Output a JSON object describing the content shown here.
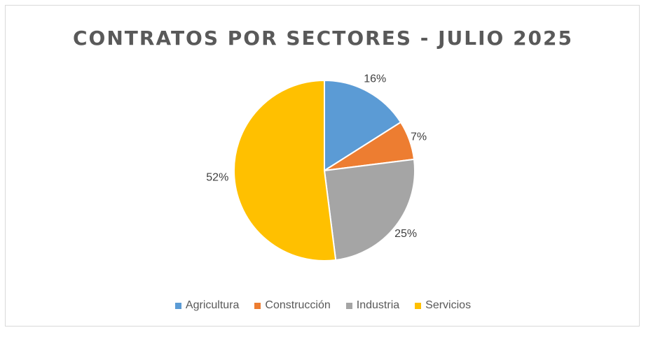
{
  "chart_data": {
    "type": "pie",
    "title": "CONTRATOS POR SECTORES - JULIO 2025",
    "categories": [
      "Agricultura",
      "Construcción",
      "Industria",
      "Servicios"
    ],
    "values": [
      16,
      7,
      25,
      52
    ],
    "labels": [
      "16%",
      "7%",
      "25%",
      "52%"
    ],
    "colors": [
      "#5b9bd5",
      "#ed7d31",
      "#a5a5a5",
      "#ffc000"
    ],
    "legend_position": "bottom"
  }
}
